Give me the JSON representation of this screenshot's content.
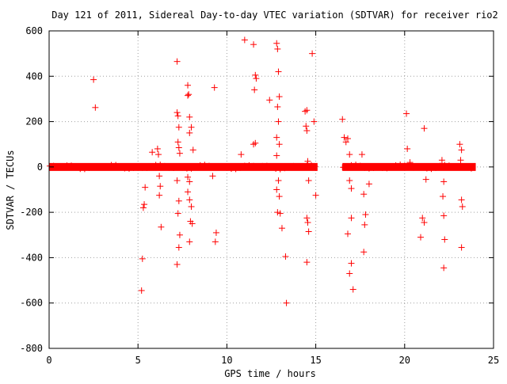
{
  "chart_data": {
    "type": "scatter",
    "title": "Day 121 of 2011, Sidereal Day-to-day VTEC variation (SDTVAR) for receiver rio2",
    "xlabel": "GPS time / hours",
    "ylabel": "SDTVAR / TECUs",
    "xlim": [
      0,
      25
    ],
    "ylim": [
      -800,
      600
    ],
    "xticks": [
      "0",
      "5",
      "10",
      "15",
      "20",
      "25"
    ],
    "yticks": [
      "-800",
      "-600",
      "-400",
      "-200",
      "0",
      "200",
      "400",
      "600"
    ],
    "grid": true,
    "marker": "plus",
    "series_color": "#ff0000",
    "band": [
      [
        0,
        24
      ],
      [
        10.7,
        10.9
      ]
    ],
    "gap": [
      15.1,
      16.5
    ],
    "points": [
      [
        2.5,
        385
      ],
      [
        2.6,
        262
      ],
      [
        5.2,
        -545
      ],
      [
        5.25,
        -405
      ],
      [
        5.3,
        -180
      ],
      [
        5.35,
        -165
      ],
      [
        5.4,
        -90
      ],
      [
        5.8,
        65
      ],
      [
        6.1,
        80
      ],
      [
        6.15,
        55
      ],
      [
        6.2,
        -40
      ],
      [
        6.25,
        -85
      ],
      [
        6.3,
        -265
      ],
      [
        6.2,
        -125
      ],
      [
        7.2,
        465
      ],
      [
        7.2,
        240
      ],
      [
        7.25,
        225
      ],
      [
        7.3,
        175
      ],
      [
        7.25,
        110
      ],
      [
        7.3,
        85
      ],
      [
        7.35,
        60
      ],
      [
        7.2,
        -60
      ],
      [
        7.3,
        -150
      ],
      [
        7.25,
        -205
      ],
      [
        7.35,
        -300
      ],
      [
        7.3,
        -355
      ],
      [
        7.2,
        -430
      ],
      [
        7.8,
        360
      ],
      [
        7.85,
        320
      ],
      [
        7.8,
        315
      ],
      [
        7.9,
        220
      ],
      [
        7.9,
        150
      ],
      [
        8.0,
        175
      ],
      [
        8.1,
        75
      ],
      [
        7.8,
        -45
      ],
      [
        7.9,
        -65
      ],
      [
        7.8,
        -110
      ],
      [
        7.9,
        -145
      ],
      [
        8.0,
        -175
      ],
      [
        7.95,
        -240
      ],
      [
        8.05,
        -250
      ],
      [
        7.9,
        -330
      ],
      [
        9.3,
        350
      ],
      [
        9.4,
        -290
      ],
      [
        9.35,
        -330
      ],
      [
        9.2,
        -40
      ],
      [
        10.8,
        55
      ],
      [
        11.0,
        560
      ],
      [
        11.5,
        540
      ],
      [
        11.6,
        405
      ],
      [
        11.65,
        390
      ],
      [
        11.55,
        340
      ],
      [
        11.6,
        105
      ],
      [
        11.5,
        100
      ],
      [
        12.4,
        295
      ],
      [
        12.8,
        545
      ],
      [
        12.85,
        520
      ],
      [
        12.9,
        420
      ],
      [
        12.95,
        310
      ],
      [
        12.85,
        265
      ],
      [
        12.9,
        200
      ],
      [
        12.8,
        130
      ],
      [
        12.95,
        100
      ],
      [
        12.8,
        50
      ],
      [
        12.9,
        -60
      ],
      [
        12.8,
        -100
      ],
      [
        12.95,
        -130
      ],
      [
        12.85,
        -200
      ],
      [
        13.0,
        -205
      ],
      [
        13.1,
        -270
      ],
      [
        13.3,
        -395
      ],
      [
        13.35,
        -600
      ],
      [
        14.4,
        245
      ],
      [
        14.5,
        250
      ],
      [
        14.45,
        180
      ],
      [
        14.5,
        160
      ],
      [
        14.55,
        25
      ],
      [
        14.6,
        -60
      ],
      [
        14.5,
        -225
      ],
      [
        14.55,
        -245
      ],
      [
        14.6,
        -285
      ],
      [
        14.5,
        -420
      ],
      [
        14.8,
        500
      ],
      [
        14.9,
        200
      ],
      [
        15.0,
        -125
      ],
      [
        16.5,
        210
      ],
      [
        16.6,
        130
      ],
      [
        16.7,
        110
      ],
      [
        16.8,
        125
      ],
      [
        16.9,
        55
      ],
      [
        16.9,
        -60
      ],
      [
        17.0,
        -95
      ],
      [
        16.8,
        -295
      ],
      [
        16.9,
        -470
      ],
      [
        17.0,
        -425
      ],
      [
        17.1,
        -540
      ],
      [
        17.0,
        -225
      ],
      [
        17.6,
        55
      ],
      [
        17.7,
        -120
      ],
      [
        17.8,
        -210
      ],
      [
        17.75,
        -255
      ],
      [
        17.7,
        -375
      ],
      [
        18.0,
        -75
      ],
      [
        20.1,
        235
      ],
      [
        20.15,
        80
      ],
      [
        20.3,
        20
      ],
      [
        20.9,
        -310
      ],
      [
        21.0,
        -225
      ],
      [
        21.1,
        -245
      ],
      [
        21.1,
        170
      ],
      [
        21.2,
        -55
      ],
      [
        22.1,
        30
      ],
      [
        22.2,
        -65
      ],
      [
        22.15,
        -130
      ],
      [
        22.2,
        -215
      ],
      [
        22.25,
        -320
      ],
      [
        22.2,
        -445
      ],
      [
        23.1,
        100
      ],
      [
        23.2,
        75
      ],
      [
        23.15,
        30
      ],
      [
        23.2,
        -145
      ],
      [
        23.25,
        -175
      ],
      [
        23.2,
        -355
      ]
    ]
  }
}
